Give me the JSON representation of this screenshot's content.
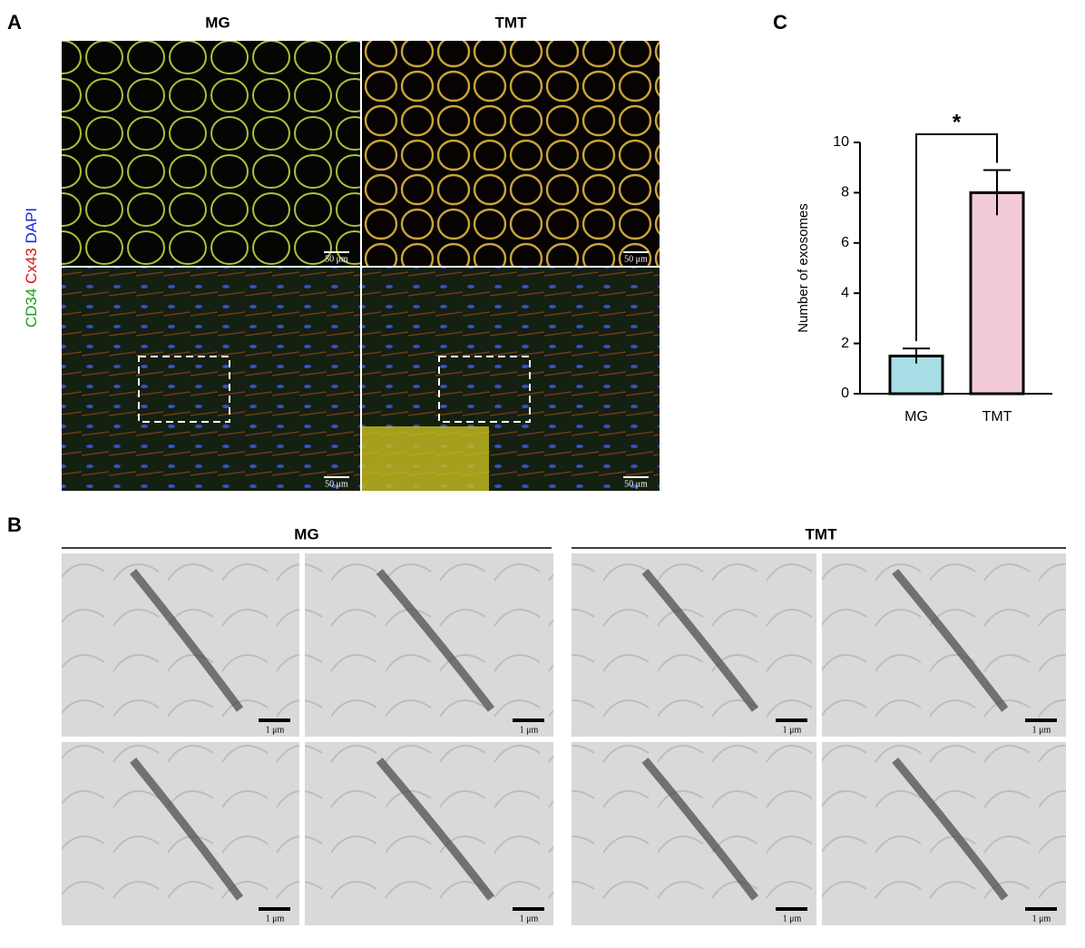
{
  "panel_a": {
    "label": "A",
    "columns": [
      "MG",
      "TMT"
    ],
    "stain": [
      "CD34",
      "Cx43",
      "DAPI"
    ],
    "scale_bars": [
      "50 μm",
      "50 μm",
      "50 μm",
      "50 μm"
    ]
  },
  "panel_b": {
    "label": "B",
    "groups": [
      "MG",
      "TMT"
    ],
    "scale_bars": [
      "1 μm",
      "1 μm",
      "1 μm",
      "1 μm",
      "1 μm",
      "1 μm",
      "1 μm",
      "1 μm"
    ]
  },
  "panel_c": {
    "label": "C"
  },
  "chart_data": {
    "type": "bar",
    "y_label": "Number of exosomes",
    "categories": [
      "MG",
      "TMT"
    ],
    "values": [
      1.5,
      8.0
    ],
    "errors": [
      0.3,
      0.9
    ],
    "colors": [
      "#a8dfe6",
      "#f2cad8"
    ],
    "significance": "*",
    "ylim": [
      0,
      10
    ],
    "yticks": [
      0,
      2,
      4,
      6,
      8,
      10
    ]
  }
}
